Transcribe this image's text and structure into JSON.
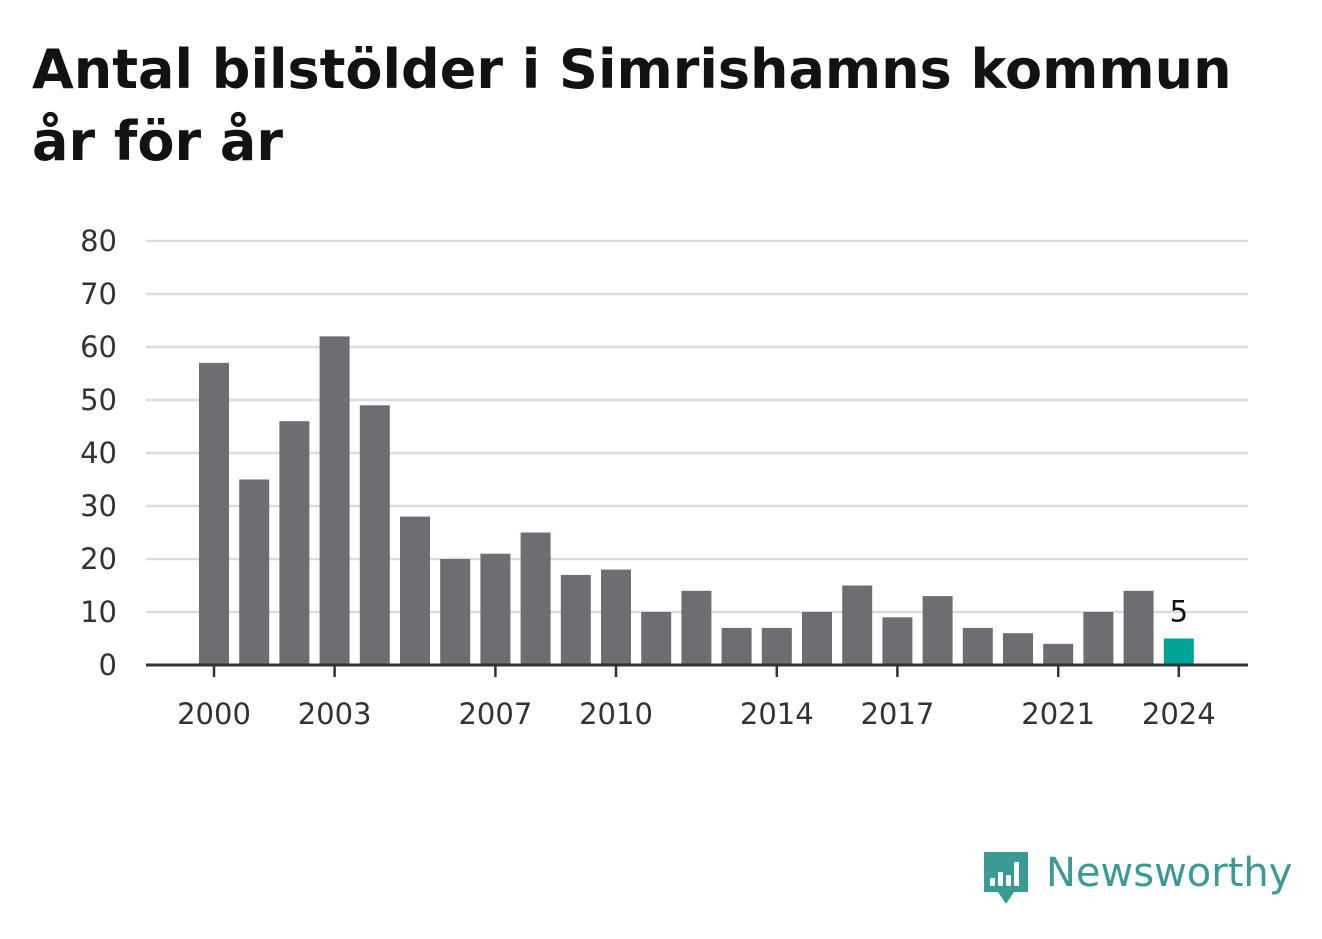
{
  "chart_data": {
    "type": "bar",
    "title": "Antal bilstölder i Simrishamns kommun år för år",
    "categories": [
      "2000",
      "2001",
      "2002",
      "2003",
      "2004",
      "2005",
      "2006",
      "2007",
      "2008",
      "2009",
      "2010",
      "2011",
      "2012",
      "2013",
      "2014",
      "2015",
      "2016",
      "2017",
      "2018",
      "2019",
      "2020",
      "2021",
      "2022",
      "2023",
      "2024"
    ],
    "values": [
      57,
      35,
      46,
      62,
      49,
      28,
      20,
      21,
      25,
      17,
      18,
      10,
      14,
      7,
      7,
      10,
      15,
      9,
      13,
      7,
      6,
      4,
      10,
      14,
      5
    ],
    "x_tick_labels": [
      "2000",
      "2003",
      "2007",
      "2010",
      "2014",
      "2017",
      "2021",
      "2024"
    ],
    "y_ticks": [
      0,
      10,
      20,
      30,
      40,
      50,
      60,
      70,
      80
    ],
    "ylim": [
      0,
      80
    ],
    "grid": true,
    "bar_color": "#6e6d72",
    "highlight_color": "#00a396",
    "highlight_category": "2024",
    "highlight_label": "5",
    "xlabel": "",
    "ylabel": ""
  },
  "brand": {
    "name": "Newsworthy",
    "icon": "newsworthy-bar-chart-bubble-icon",
    "color": "#3c9a96"
  }
}
